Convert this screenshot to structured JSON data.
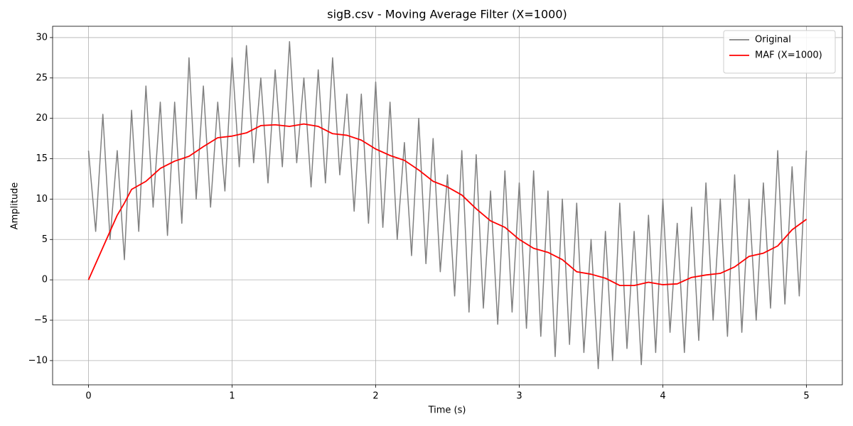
{
  "chart_data": {
    "type": "line",
    "title": "sigB.csv - Moving Average Filter (X=1000)",
    "x_label": "Time (s)",
    "y_label": "Amplitude",
    "xlim": [
      -0.25,
      5.25
    ],
    "ylim": [
      -13,
      31.4
    ],
    "xticks": [
      0,
      1,
      2,
      3,
      4,
      5
    ],
    "yticks": [
      {
        "value": -10,
        "label": "−10"
      },
      {
        "value": -5,
        "label": "−5"
      },
      0,
      5,
      10,
      15,
      20,
      25,
      30
    ],
    "grid": true,
    "legend": "upper right",
    "series": [
      {
        "name": "Original",
        "color": "#808080",
        "x": [
          0,
          0.05,
          0.1,
          0.15,
          0.2,
          0.25,
          0.3,
          0.35,
          0.4,
          0.45,
          0.5,
          0.55,
          0.6,
          0.65,
          0.7,
          0.75,
          0.8,
          0.85,
          0.9,
          0.95,
          1,
          1.05,
          1.1,
          1.15,
          1.2,
          1.25,
          1.3,
          1.35,
          1.4,
          1.45,
          1.5,
          1.55,
          1.6,
          1.65,
          1.7,
          1.75,
          1.8,
          1.85,
          1.9,
          1.95,
          2,
          2.05,
          2.1,
          2.15,
          2.2,
          2.25,
          2.3,
          2.35,
          2.4,
          2.45,
          2.5,
          2.55,
          2.6,
          2.65,
          2.7,
          2.75,
          2.8,
          2.85,
          2.9,
          2.95,
          3,
          3.05,
          3.1,
          3.15,
          3.2,
          3.25,
          3.3,
          3.35,
          3.4,
          3.45,
          3.5,
          3.55,
          3.6,
          3.65,
          3.7,
          3.75,
          3.8,
          3.85,
          3.9,
          3.95,
          4,
          4.05,
          4.1,
          4.15,
          4.2,
          4.25,
          4.3,
          4.35,
          4.4,
          4.45,
          4.5,
          4.55,
          4.6,
          4.65,
          4.7,
          4.75,
          4.8,
          4.85,
          4.9,
          4.95,
          5
        ],
        "values": [
          16,
          6,
          20.5,
          5,
          16,
          2.5,
          21,
          6,
          24,
          9,
          22,
          5.5,
          22,
          7,
          27.5,
          10,
          24,
          9,
          22,
          11,
          27.5,
          14,
          29,
          14.5,
          25,
          12,
          26,
          14,
          29.5,
          14.5,
          25,
          11.5,
          26,
          12,
          27.5,
          13,
          23,
          8.5,
          23,
          7,
          24.5,
          6.5,
          22,
          5,
          17,
          3,
          20,
          2,
          17.5,
          1,
          13,
          -2,
          16,
          -4,
          15.5,
          -3.5,
          11,
          -5.5,
          13.5,
          -4,
          12,
          -6,
          13.5,
          -7,
          11,
          -9.5,
          10,
          -8,
          9.5,
          -9,
          5,
          -11,
          6,
          -10,
          9.5,
          -8.5,
          6,
          -10.5,
          8,
          -9,
          10,
          -6.5,
          7,
          -9,
          9,
          -7.5,
          12,
          -5,
          10,
          -7,
          13,
          -6.5,
          10,
          -5,
          12,
          -3.5,
          16,
          -3,
          14,
          -2,
          16
        ]
      },
      {
        "name": "MAF (X=1000)",
        "color": "#ff0000",
        "x": [
          0,
          0.1,
          0.2,
          0.25,
          0.3,
          0.4,
          0.5,
          0.6,
          0.7,
          0.8,
          0.9,
          1,
          1.1,
          1.2,
          1.3,
          1.4,
          1.5,
          1.6,
          1.7,
          1.8,
          1.9,
          2,
          2.1,
          2.2,
          2.3,
          2.4,
          2.5,
          2.6,
          2.7,
          2.8,
          2.9,
          3,
          3.1,
          3.2,
          3.3,
          3.4,
          3.5,
          3.6,
          3.7,
          3.8,
          3.9,
          4,
          4.1,
          4.2,
          4.3,
          4.4,
          4.5,
          4.6,
          4.7,
          4.8,
          4.9,
          5
        ],
        "values": [
          0,
          4,
          8,
          9.5,
          11.2,
          12.2,
          13.8,
          14.7,
          15.3,
          16.5,
          17.6,
          17.8,
          18.2,
          19.1,
          19.2,
          19,
          19.3,
          19,
          18.1,
          17.9,
          17.3,
          16.2,
          15.4,
          14.8,
          13.6,
          12.2,
          11.5,
          10.5,
          8.8,
          7.3,
          6.5,
          5,
          3.9,
          3.4,
          2.5,
          1,
          0.7,
          0.2,
          -0.7,
          -0.7,
          -0.3,
          -0.6,
          -0.5,
          0.3,
          0.6,
          0.8,
          1.6,
          2.9,
          3.3,
          4.2,
          6.2,
          7.5
        ]
      }
    ]
  }
}
